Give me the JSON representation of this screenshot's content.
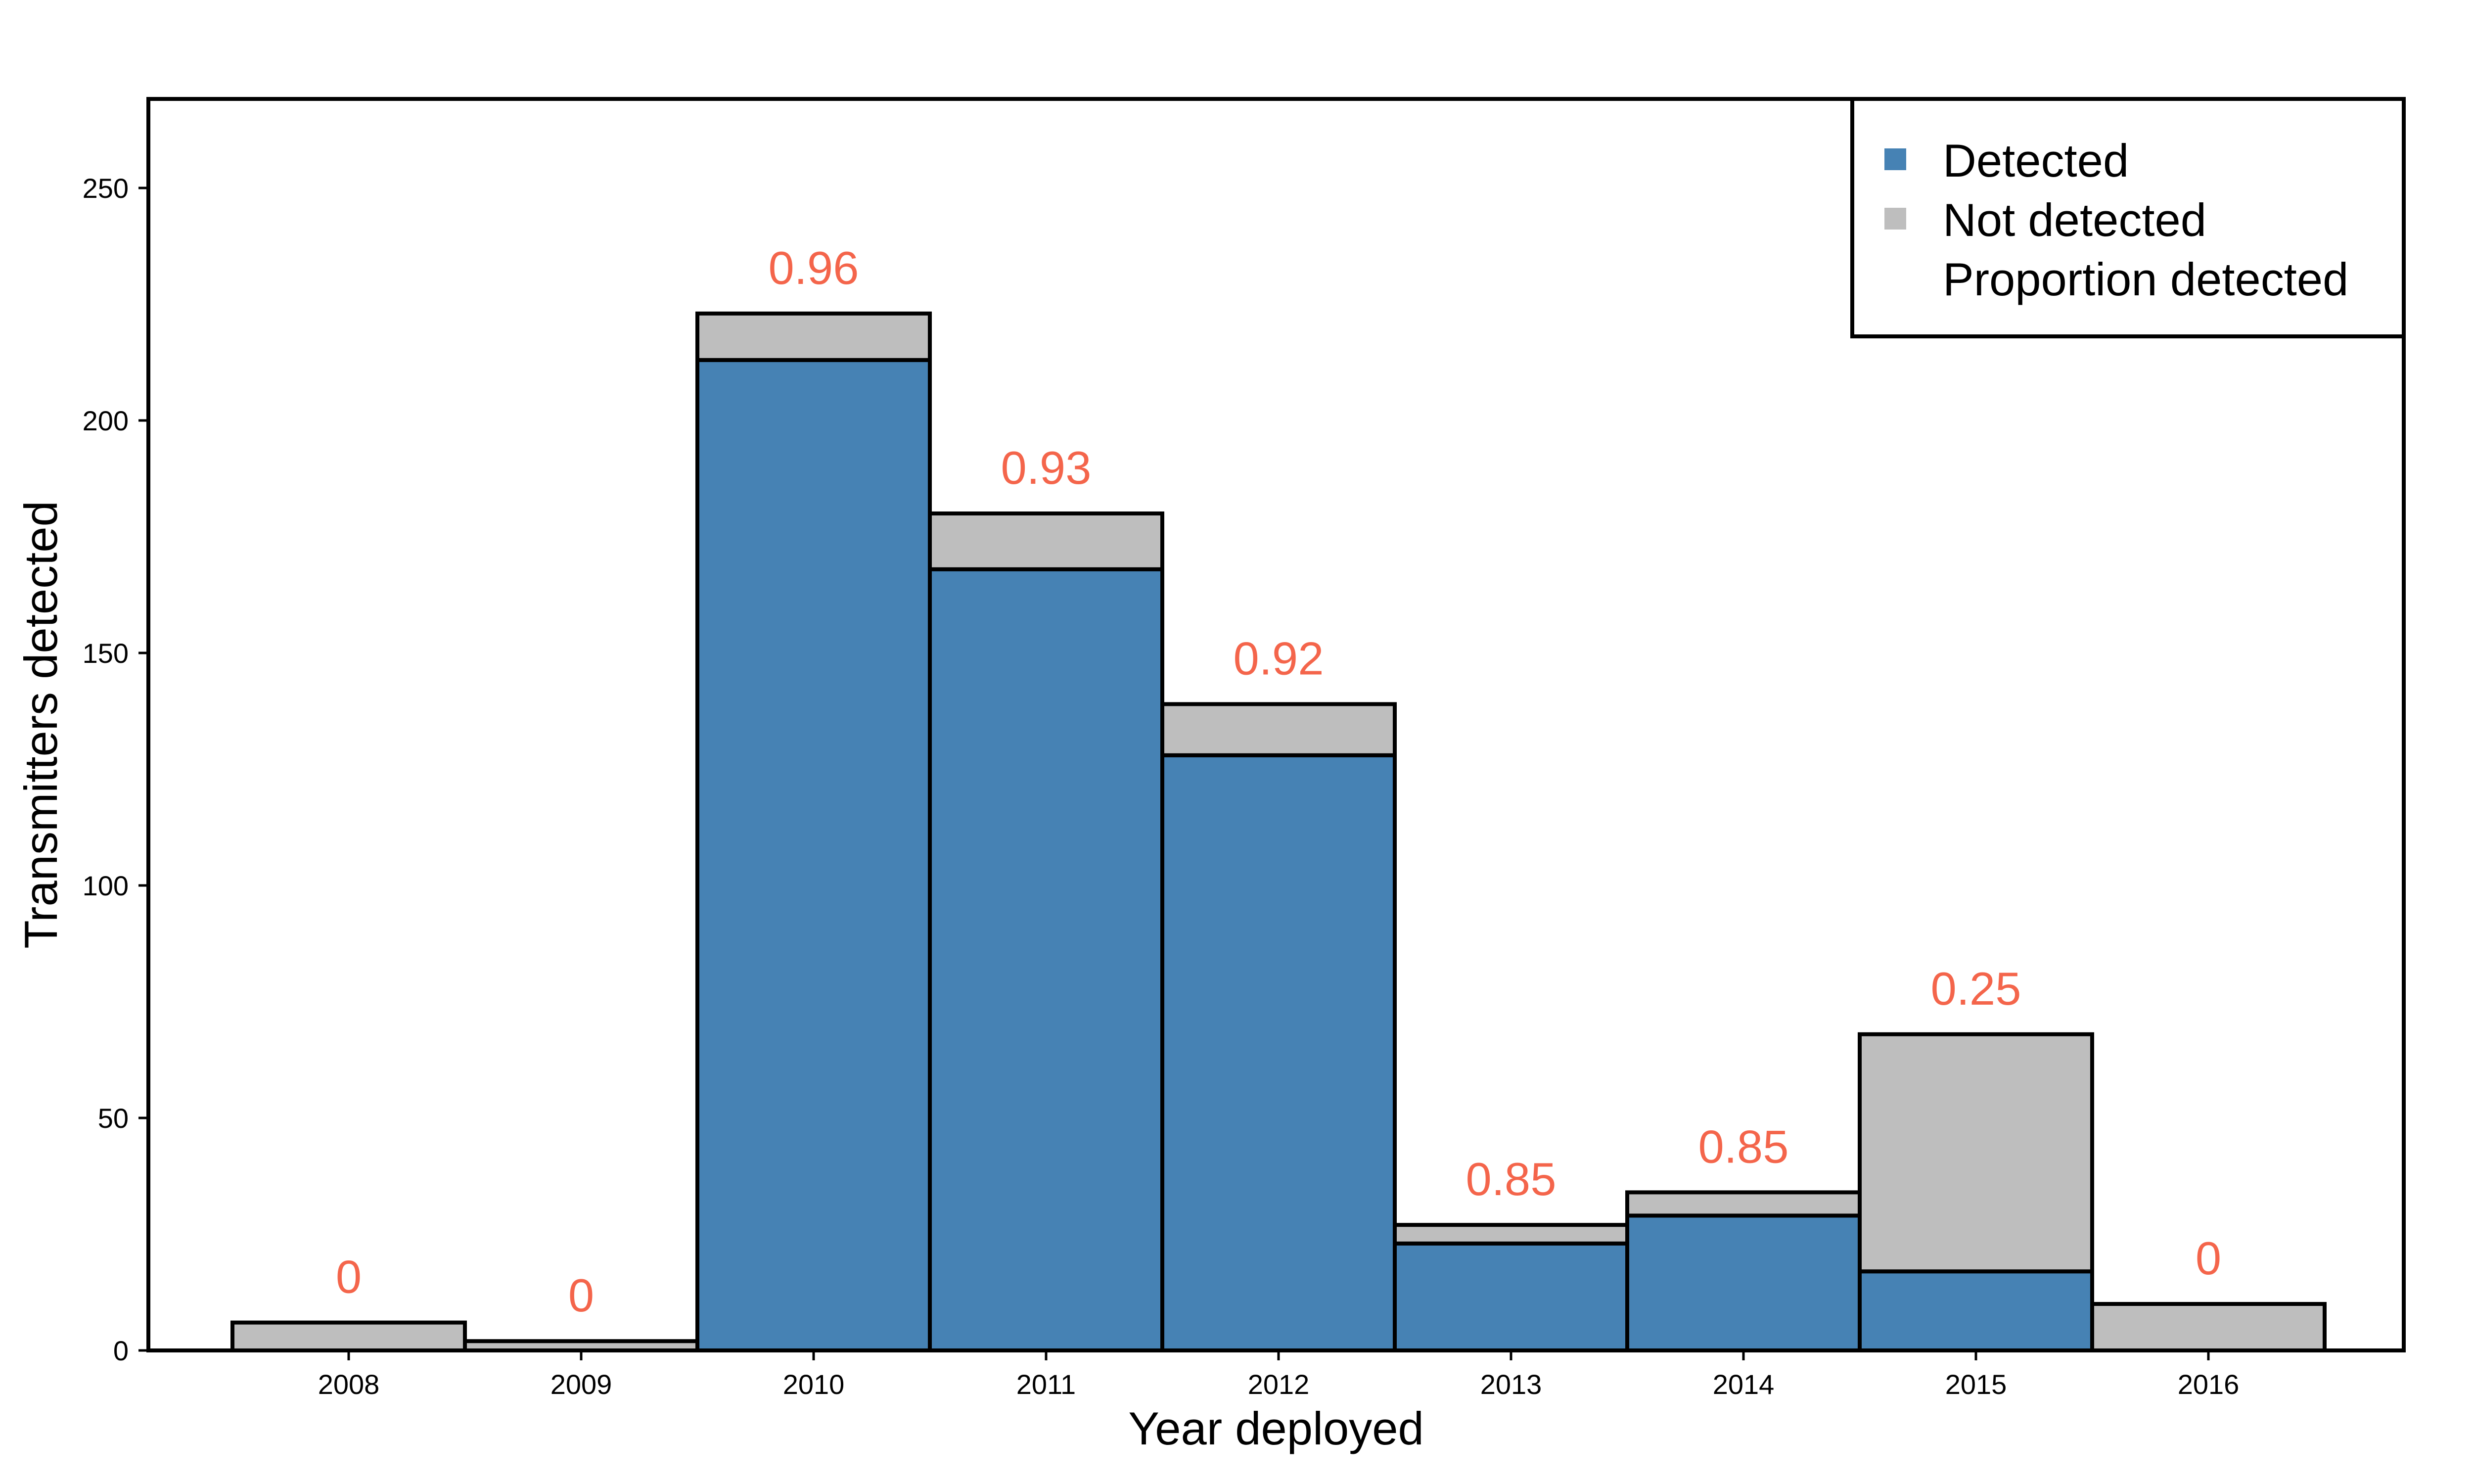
{
  "chart_data": {
    "type": "bar",
    "stacked": true,
    "categories": [
      "2008",
      "2009",
      "2010",
      "2011",
      "2012",
      "2013",
      "2014",
      "2015",
      "2016"
    ],
    "series": [
      {
        "name": "Detected",
        "color": "#4682B4",
        "values": [
          0,
          0,
          213,
          168,
          128,
          23,
          29,
          17,
          0
        ]
      },
      {
        "name": "Not detected",
        "color": "#BEBEBE",
        "values": [
          6,
          2,
          10,
          12,
          11,
          4,
          5,
          51,
          10
        ]
      }
    ],
    "annotations": {
      "name": "Proportion detected",
      "color": "#F4654B",
      "values": [
        "0",
        "0",
        "0.96",
        "0.93",
        "0.92",
        "0.85",
        "0.85",
        "0.25",
        "0"
      ]
    },
    "xlabel": "Year deployed",
    "ylabel": "Transmitters detected",
    "ylim": [
      0,
      250
    ],
    "yticks": [
      0,
      50,
      100,
      150,
      200,
      250
    ],
    "grid": false,
    "legend_position": "top-right"
  }
}
